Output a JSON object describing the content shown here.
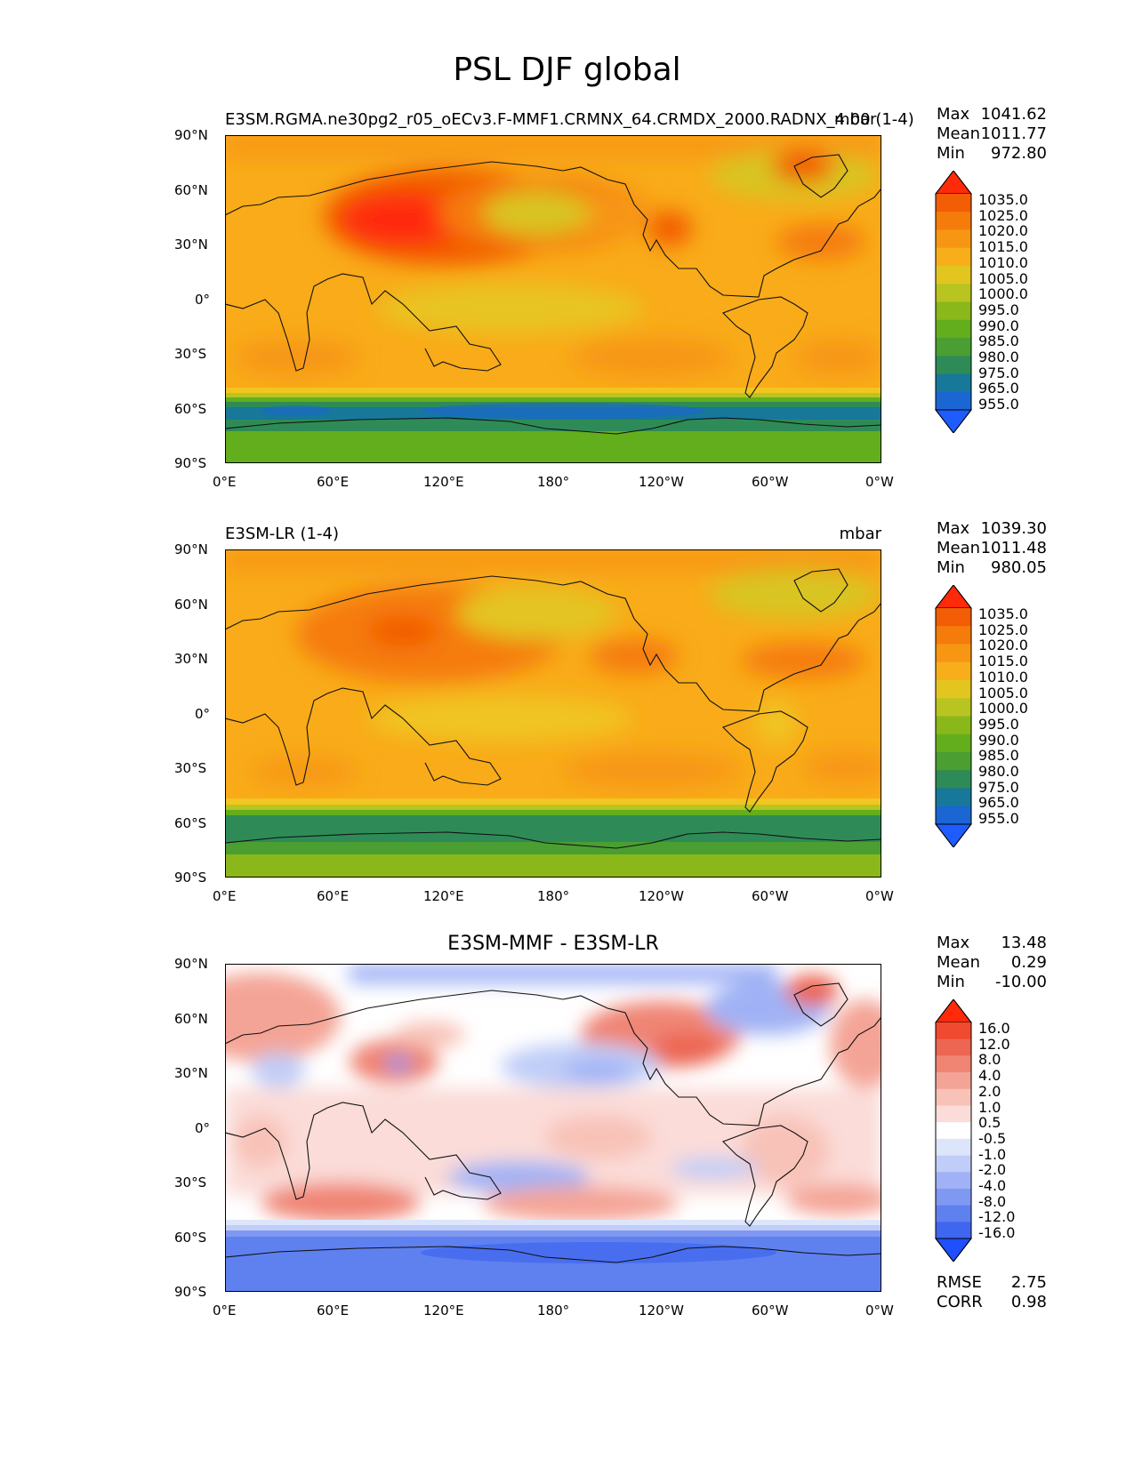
{
  "page": {
    "title": "PSL DJF global"
  },
  "colors": {
    "abs_scale": [
      "#1f5cff",
      "#1a66d2",
      "#177899",
      "#2e8b57",
      "#4a9e32",
      "#63ae1c",
      "#8ab81a",
      "#b8c420",
      "#e3c520",
      "#f7ae1a",
      "#f79612",
      "#f57c0a",
      "#f25d06",
      "#ff2a0a"
    ],
    "diff_scale": [
      "#1f4fff",
      "#3f66ef",
      "#5f80ef",
      "#7f98f2",
      "#a0b2f5",
      "#c0cdf8",
      "#dde5fb",
      "#ffffff",
      "#fbdcd8",
      "#f8c2b8",
      "#f4a496",
      "#f08574",
      "#ec6652",
      "#f04a30",
      "#ff2a0a"
    ],
    "land_outline": "#111111"
  },
  "chart_data": [
    {
      "type": "heatmap",
      "title_left": "E3SM.RGMA.ne30pg2_r05_oECv3.F-MMF1.CRMNX_64.CRMDX_2000.RADNX_4.00 (1-4)",
      "title_right": "mbar",
      "title_center": "",
      "stats": {
        "Max": "1041.62",
        "Mean": "1011.77",
        "Min": "972.80"
      },
      "colorbar_levels": [
        "1035.0",
        "1025.0",
        "1020.0",
        "1015.0",
        "1010.0",
        "1005.0",
        "1000.0",
        "995.0",
        "990.0",
        "985.0",
        "980.0",
        "975.0",
        "965.0",
        "955.0"
      ],
      "lat_ticks": [
        "90°N",
        "60°N",
        "30°N",
        "0°",
        "30°S",
        "60°S",
        "90°S"
      ],
      "lon_ticks": [
        "0°E",
        "60°E",
        "120°E",
        "180°",
        "120°W",
        "60°W",
        "0°W"
      ],
      "lat_range": [
        -90,
        90
      ],
      "lon_range": [
        0,
        360
      ]
    },
    {
      "type": "heatmap",
      "title_left": "E3SM-LR (1-4)",
      "title_right": "mbar",
      "title_center": "",
      "stats": {
        "Max": "1039.30",
        "Mean": "1011.48",
        "Min": "980.05"
      },
      "colorbar_levels": [
        "1035.0",
        "1025.0",
        "1020.0",
        "1015.0",
        "1010.0",
        "1005.0",
        "1000.0",
        "995.0",
        "990.0",
        "985.0",
        "980.0",
        "975.0",
        "965.0",
        "955.0"
      ],
      "lat_ticks": [
        "90°N",
        "60°N",
        "30°N",
        "0°",
        "30°S",
        "60°S",
        "90°S"
      ],
      "lon_ticks": [
        "0°E",
        "60°E",
        "120°E",
        "180°",
        "120°W",
        "60°W",
        "0°W"
      ],
      "lat_range": [
        -90,
        90
      ],
      "lon_range": [
        0,
        360
      ]
    },
    {
      "type": "heatmap",
      "title_left": "",
      "title_right": "",
      "title_center": "E3SM-MMF - E3SM-LR",
      "stats": {
        "Max": "13.48",
        "Mean": "0.29",
        "Min": "-10.00"
      },
      "colorbar_levels": [
        "16.0",
        "12.0",
        "8.0",
        "4.0",
        "2.0",
        "1.0",
        "0.5",
        "-0.5",
        "-1.0",
        "-2.0",
        "-4.0",
        "-8.0",
        "-12.0",
        "-16.0"
      ],
      "lat_ticks": [
        "90°N",
        "60°N",
        "30°N",
        "0°",
        "30°S",
        "60°S",
        "90°S"
      ],
      "lon_ticks": [
        "0°E",
        "60°E",
        "120°E",
        "180°",
        "120°W",
        "60°W",
        "0°W"
      ],
      "lat_range": [
        -90,
        90
      ],
      "lon_range": [
        0,
        360
      ],
      "metrics": {
        "RMSE": "2.75",
        "CORR": "0.98"
      }
    }
  ]
}
